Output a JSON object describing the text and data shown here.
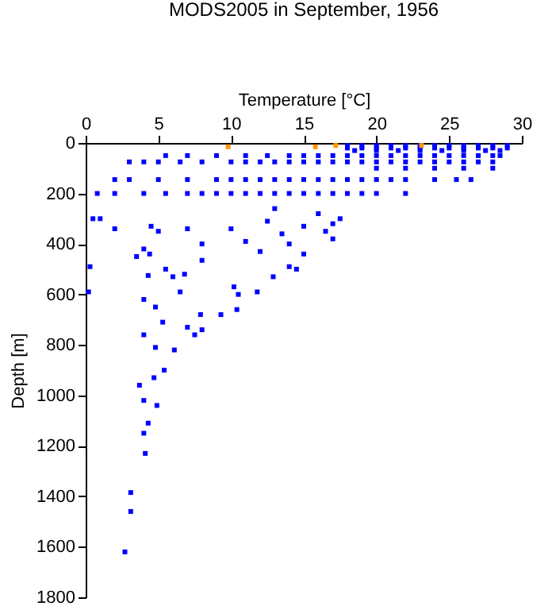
{
  "chart_data": {
    "type": "scatter",
    "title": "MODS2005 in September, 1956",
    "xlabel": "Temperature [°C]",
    "ylabel": "Depth [m]",
    "xlim": [
      0,
      30
    ],
    "xticks": [
      0,
      5,
      10,
      15,
      20,
      25,
      30
    ],
    "ylim": [
      1800,
      0
    ],
    "yticks": [
      0,
      200,
      400,
      600,
      800,
      1000,
      1200,
      1400,
      1600,
      1800
    ],
    "grid": false,
    "marker": "square",
    "legend": false,
    "series": [
      {
        "color": "#0000ff",
        "x": [
          18,
          19,
          20,
          21,
          22,
          23,
          24,
          25,
          26,
          27,
          28,
          29,
          18,
          19,
          20,
          21,
          22,
          23,
          24,
          25,
          26,
          27,
          28,
          29,
          18.5,
          20,
          21.5,
          23,
          24.5,
          26,
          27.5,
          28.5,
          5.5,
          7,
          9,
          11,
          12.5,
          14,
          15,
          16,
          17,
          18,
          19,
          20,
          21,
          22,
          23,
          24,
          25,
          26,
          27,
          28,
          28.5,
          3,
          4,
          5,
          6.5,
          8,
          10,
          11,
          12,
          13,
          14,
          15,
          16,
          17,
          18,
          19,
          20,
          21,
          22,
          23,
          24,
          25,
          26,
          27,
          28,
          20,
          22,
          24,
          26,
          28,
          2,
          3,
          5,
          7,
          9,
          10,
          11,
          12,
          13,
          14,
          15,
          16,
          17,
          18,
          19,
          20,
          21,
          22,
          24,
          25.5,
          26.5,
          0.8,
          2,
          4,
          5.5,
          7,
          8,
          9,
          10,
          11,
          12,
          13,
          14,
          15,
          16,
          17,
          18,
          19,
          20,
          22,
          0.5,
          1,
          2,
          4.5,
          5,
          7,
          10,
          12.5,
          13,
          13.5,
          15,
          16,
          16.5,
          17,
          17.5,
          17,
          8,
          11,
          14,
          4,
          3.5,
          12,
          15,
          0.3,
          0.2,
          4.3,
          4.4,
          5.5,
          6,
          6.5,
          4,
          4.8,
          5.3,
          4,
          4.8,
          6.1,
          7,
          7.9,
          9.3,
          10.4,
          10.5,
          11.8,
          10.2,
          12.9,
          14,
          14.5,
          8,
          6.8,
          3.7,
          4,
          4.7,
          5.4,
          4.9,
          4.3,
          4,
          4.1,
          8,
          7.5,
          3.1,
          3.1,
          2.7
        ],
        "values": [
          10,
          10,
          10,
          10,
          10,
          10,
          10,
          10,
          10,
          10,
          10,
          10,
          20,
          20,
          20,
          20,
          20,
          20,
          20,
          20,
          20,
          20,
          20,
          20,
          30,
          30,
          30,
          30,
          30,
          30,
          30,
          30,
          50,
          50,
          50,
          50,
          50,
          50,
          50,
          50,
          50,
          50,
          50,
          50,
          50,
          50,
          50,
          50,
          50,
          50,
          50,
          50,
          50,
          75,
          75,
          75,
          75,
          75,
          75,
          75,
          75,
          75,
          75,
          75,
          75,
          75,
          75,
          75,
          75,
          75,
          75,
          75,
          75,
          75,
          75,
          75,
          75,
          100,
          100,
          100,
          100,
          100,
          145,
          145,
          145,
          145,
          145,
          145,
          145,
          145,
          145,
          145,
          145,
          145,
          145,
          145,
          145,
          145,
          145,
          145,
          145,
          145,
          145,
          200,
          200,
          200,
          200,
          200,
          200,
          200,
          200,
          200,
          200,
          200,
          200,
          200,
          200,
          200,
          200,
          200,
          200,
          200,
          300,
          300,
          340,
          330,
          350,
          340,
          340,
          310,
          260,
          360,
          330,
          280,
          350,
          320,
          300,
          380,
          400,
          390,
          400,
          420,
          450,
          430,
          440,
          490,
          590,
          525,
          440,
          500,
          530,
          590,
          620,
          650,
          710,
          760,
          810,
          820,
          730,
          680,
          680,
          660,
          600,
          590,
          570,
          530,
          490,
          500,
          465,
          520,
          960,
          1020,
          930,
          900,
          1040,
          1110,
          1150,
          1230,
          740,
          760,
          1385,
          1460,
          1620
        ]
      },
      {
        "color": "#ff9900",
        "x": [
          9.8,
          15.8,
          17.2,
          23.1
        ],
        "values": [
          15,
          15,
          10,
          10
        ]
      }
    ]
  }
}
